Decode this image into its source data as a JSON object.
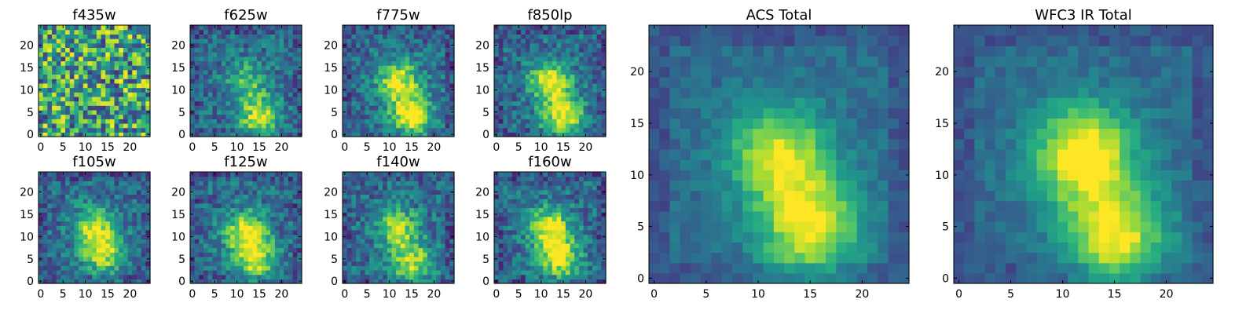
{
  "chart_data": {
    "type": "heatmap",
    "colormap": "viridis",
    "axis_range": [
      -0.5,
      24.5
    ],
    "grid_size": 25,
    "panels": [
      {
        "title": "f435w",
        "xticks": [
          "0",
          "5",
          "10",
          "15",
          "20"
        ],
        "yticks": [
          "0",
          "5",
          "10",
          "15",
          "20"
        ],
        "pattern": "noise",
        "peaks": []
      },
      {
        "title": "f625w",
        "xticks": [
          "0",
          "5",
          "10",
          "15",
          "20"
        ],
        "yticks": [
          "0",
          "5",
          "10",
          "15",
          "20"
        ],
        "pattern": "source",
        "peaks": [
          {
            "x": 12,
            "y": 12,
            "amp": 0.35
          },
          {
            "x": 15,
            "y": 4,
            "amp": 0.55
          }
        ]
      },
      {
        "title": "f775w",
        "xticks": [
          "0",
          "5",
          "10",
          "15",
          "20"
        ],
        "yticks": [
          "0",
          "5",
          "10",
          "15",
          "20"
        ],
        "pattern": "source",
        "peaks": [
          {
            "x": 12,
            "y": 12,
            "amp": 0.6
          },
          {
            "x": 15,
            "y": 4,
            "amp": 0.7
          }
        ]
      },
      {
        "title": "f850lp",
        "xticks": [
          "0",
          "5",
          "10",
          "15",
          "20"
        ],
        "yticks": [
          "0",
          "5",
          "10",
          "15",
          "20"
        ],
        "pattern": "source",
        "peaks": [
          {
            "x": 12,
            "y": 12,
            "amp": 0.6
          },
          {
            "x": 15,
            "y": 4,
            "amp": 0.65
          }
        ]
      },
      {
        "title": "f105w",
        "xticks": [
          "0",
          "5",
          "10",
          "15",
          "20"
        ],
        "yticks": [
          "0",
          "5",
          "10",
          "15",
          "20"
        ],
        "pattern": "source",
        "peaks": [
          {
            "x": 12,
            "y": 12,
            "amp": 0.55
          },
          {
            "x": 14,
            "y": 6,
            "amp": 0.5
          }
        ]
      },
      {
        "title": "f125w",
        "xticks": [
          "0",
          "5",
          "10",
          "15",
          "20"
        ],
        "yticks": [
          "0",
          "5",
          "10",
          "15",
          "20"
        ],
        "pattern": "source",
        "peaks": [
          {
            "x": 12,
            "y": 11,
            "amp": 0.6
          },
          {
            "x": 14,
            "y": 5,
            "amp": 0.55
          }
        ]
      },
      {
        "title": "f140w",
        "xticks": [
          "0",
          "5",
          "10",
          "15",
          "20"
        ],
        "yticks": [
          "0",
          "5",
          "10",
          "15",
          "20"
        ],
        "pattern": "source",
        "peaks": [
          {
            "x": 12,
            "y": 12,
            "amp": 0.5
          },
          {
            "x": 15,
            "y": 4,
            "amp": 0.55
          }
        ]
      },
      {
        "title": "f160w",
        "xticks": [
          "0",
          "5",
          "10",
          "15",
          "20"
        ],
        "yticks": [
          "0",
          "5",
          "10",
          "15",
          "20"
        ],
        "pattern": "source",
        "peaks": [
          {
            "x": 12,
            "y": 12,
            "amp": 0.65
          },
          {
            "x": 14,
            "y": 5,
            "amp": 0.6
          }
        ]
      },
      {
        "title": "ACS Total",
        "xticks": [
          "0",
          "5",
          "10",
          "15",
          "20"
        ],
        "yticks": [
          "0",
          "5",
          "10",
          "15",
          "20"
        ],
        "pattern": "source",
        "peaks": [
          {
            "x": 12,
            "y": 12,
            "amp": 0.6
          },
          {
            "x": 15,
            "y": 5,
            "amp": 0.65
          }
        ]
      },
      {
        "title": "WFC3 IR Total",
        "xticks": [
          "0",
          "5",
          "10",
          "15",
          "20"
        ],
        "yticks": [
          "0",
          "5",
          "10",
          "15",
          "20"
        ],
        "pattern": "source",
        "peaks": [
          {
            "x": 12,
            "y": 12,
            "amp": 0.75
          },
          {
            "x": 15,
            "y": 4,
            "amp": 0.65
          }
        ]
      }
    ]
  },
  "colors": {
    "viridis": [
      "#440154",
      "#472c7a",
      "#3b518b",
      "#2c718e",
      "#21908d",
      "#27ad81",
      "#5cc863",
      "#aadc32",
      "#fde725"
    ]
  }
}
